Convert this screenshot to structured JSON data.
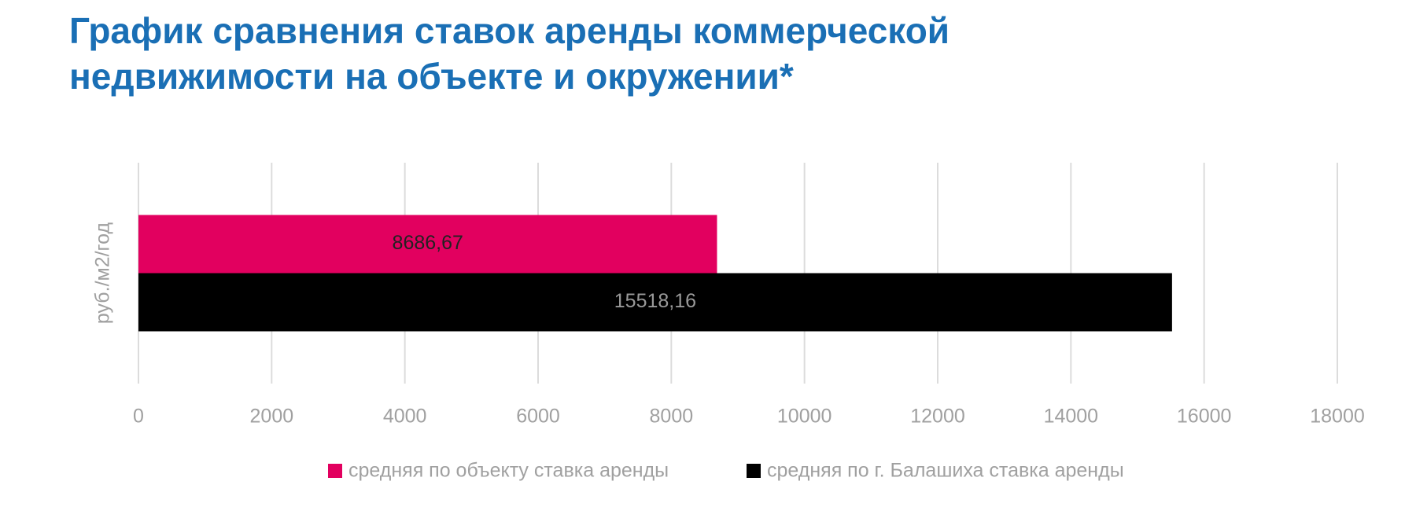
{
  "chart_data": {
    "type": "hbar",
    "title": [
      "График сравнения ставок аренды коммерческой",
      "недвижимости на объекте и окружении*"
    ],
    "categories": [
      "руб./м2/год"
    ],
    "series": [
      {
        "name": "средняя по объекту ставка аренды",
        "color": "#e2005f",
        "values": [
          8686.67
        ],
        "value_labels": [
          "8686,67"
        ]
      },
      {
        "name": "средняя по г. Балашиха ставка аренды",
        "color": "#000000",
        "values": [
          15518.16
        ],
        "value_labels": [
          "15518,16"
        ]
      }
    ],
    "xlim": [
      0,
      18000
    ],
    "xticks": [
      0,
      2000,
      4000,
      6000,
      8000,
      10000,
      12000,
      14000,
      16000,
      18000
    ],
    "grid": true,
    "legend": "bottom"
  }
}
